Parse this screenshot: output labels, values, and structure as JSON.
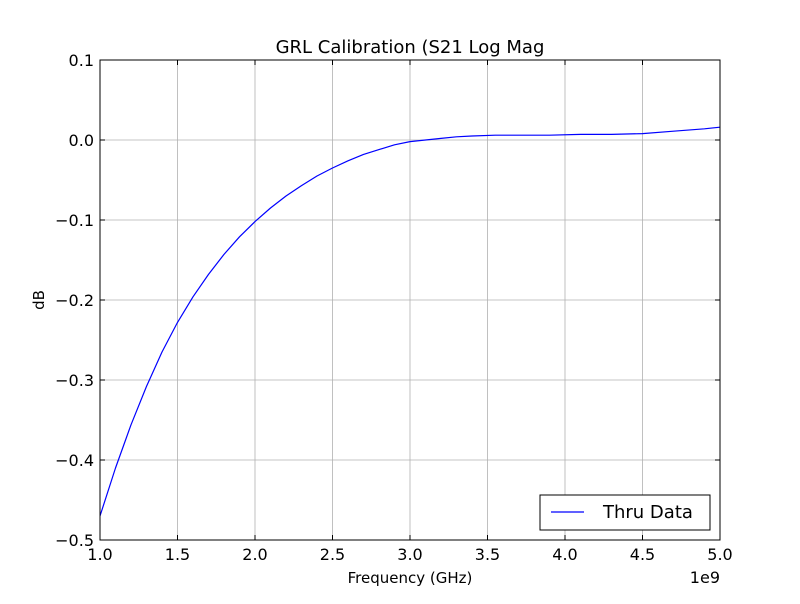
{
  "chart_data": {
    "type": "line",
    "title": "GRL Calibration (S21 Log Mag",
    "xlabel": "Frequency (GHz)",
    "ylabel": "dB",
    "x_offset_label": "1e9",
    "xlim": [
      1.0,
      5.0
    ],
    "ylim": [
      -0.5,
      0.1
    ],
    "x_ticks": [
      1.0,
      1.5,
      2.0,
      2.5,
      3.0,
      3.5,
      4.0,
      4.5,
      5.0
    ],
    "x_tick_labels": [
      "1.0",
      "1.5",
      "2.0",
      "2.5",
      "3.0",
      "3.5",
      "4.0",
      "4.5",
      "5.0"
    ],
    "y_ticks": [
      -0.5,
      -0.4,
      -0.3,
      -0.2,
      -0.1,
      0.0,
      0.1
    ],
    "y_tick_labels": [
      "−0.5",
      "−0.4",
      "−0.3",
      "−0.2",
      "−0.1",
      "0.0",
      "0.1"
    ],
    "grid": true,
    "legend_position": "bottom-right",
    "series": [
      {
        "name": "Thru Data",
        "color": "#0000ff",
        "x": [
          1.0,
          1.1,
          1.2,
          1.3,
          1.4,
          1.5,
          1.6,
          1.7,
          1.8,
          1.9,
          2.0,
          2.1,
          2.2,
          2.3,
          2.4,
          2.5,
          2.6,
          2.7,
          2.8,
          2.9,
          3.0,
          3.1,
          3.2,
          3.3,
          3.4,
          3.55,
          3.7,
          3.9,
          4.1,
          4.3,
          4.5,
          4.7,
          4.9,
          5.0
        ],
        "y": [
          -0.47,
          -0.41,
          -0.356,
          -0.308,
          -0.265,
          -0.228,
          -0.196,
          -0.168,
          -0.143,
          -0.121,
          -0.102,
          -0.085,
          -0.07,
          -0.057,
          -0.045,
          -0.035,
          -0.026,
          -0.018,
          -0.012,
          -0.006,
          -0.002,
          0.0,
          0.002,
          0.004,
          0.005,
          0.006,
          0.006,
          0.006,
          0.007,
          0.007,
          0.008,
          0.011,
          0.014,
          0.016
        ]
      }
    ]
  }
}
